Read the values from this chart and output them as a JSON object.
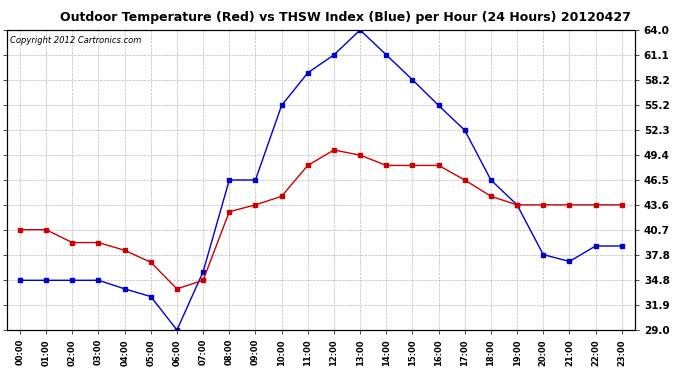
{
  "title": "Outdoor Temperature (Red) vs THSW Index (Blue) per Hour (24 Hours) 20120427",
  "copyright": "Copyright 2012 Cartronics.com",
  "hours": [
    0,
    1,
    2,
    3,
    4,
    5,
    6,
    7,
    8,
    9,
    10,
    11,
    12,
    13,
    14,
    15,
    16,
    17,
    18,
    19,
    20,
    21,
    22,
    23
  ],
  "hour_labels": [
    "00:00",
    "01:00",
    "02:00",
    "03:00",
    "04:00",
    "05:00",
    "06:00",
    "07:00",
    "08:00",
    "09:00",
    "10:00",
    "11:00",
    "12:00",
    "13:00",
    "14:00",
    "15:00",
    "16:00",
    "17:00",
    "18:00",
    "19:00",
    "20:00",
    "21:00",
    "22:00",
    "23:00"
  ],
  "temp_red": [
    40.7,
    40.7,
    39.2,
    39.2,
    38.3,
    36.9,
    33.8,
    34.8,
    42.8,
    43.6,
    44.6,
    48.2,
    50.0,
    49.4,
    48.2,
    48.2,
    48.2,
    46.5,
    44.6,
    43.6,
    43.6,
    43.6,
    43.6,
    43.6
  ],
  "thsw_blue": [
    34.8,
    34.8,
    34.8,
    34.8,
    33.8,
    32.9,
    29.0,
    35.8,
    46.5,
    46.5,
    55.2,
    59.0,
    61.1,
    64.0,
    61.1,
    58.2,
    55.2,
    52.3,
    46.5,
    43.6,
    37.8,
    37.0,
    38.8,
    38.8
  ],
  "ylim": [
    29.0,
    64.0
  ],
  "yticks": [
    29.0,
    31.9,
    34.8,
    37.8,
    40.7,
    43.6,
    46.5,
    49.4,
    52.3,
    55.2,
    58.2,
    61.1,
    64.0
  ],
  "ytick_labels": [
    "29.0",
    "31.9",
    "34.8",
    "37.8",
    "40.7",
    "43.6",
    "46.5",
    "49.4",
    "52.3",
    "55.2",
    "58.2",
    "61.1",
    "64.0"
  ],
  "red_color": "#cc0000",
  "blue_color": "#0000cc",
  "grid_color": "#aaaaaa",
  "bg_color": "#ffffff",
  "plot_bg_color": "#ffffff"
}
